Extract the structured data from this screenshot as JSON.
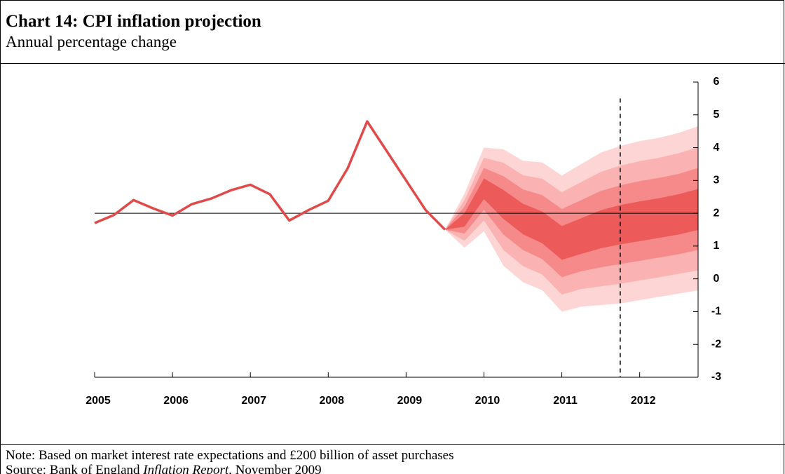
{
  "chart_data": {
    "type": "fan",
    "title": "Chart 14: CPI inflation projection",
    "subtitle": "Annual percentage change",
    "note": "Note: Based on market interest rate expectations and £200 billion of asset purchases",
    "source": {
      "prefix": "Source: Bank of England ",
      "italic": "Inflation Report",
      "suffix": ", November 2009"
    },
    "xlim": [
      2005,
      2012.75
    ],
    "xticks": [
      2005,
      2006,
      2007,
      2008,
      2009,
      2010,
      2011,
      2012
    ],
    "ylim": [
      -3,
      6
    ],
    "yticks": [
      -3,
      -2,
      -1,
      0,
      1,
      2,
      3,
      4,
      5,
      6
    ],
    "hline": 2,
    "vline": {
      "x": 2011.75,
      "top": 5.5
    },
    "series": [
      {
        "color": "#e04a4a",
        "x": [
          2005,
          2005.25,
          2005.5,
          2005.75,
          2006,
          2006.25,
          2006.5,
          2006.75,
          2007,
          2007.25,
          2007.5,
          2007.75,
          2008,
          2008.25,
          2008.5,
          2008.75,
          2009,
          2009.25,
          2009.5
        ],
        "values": [
          1.7,
          1.95,
          2.4,
          2.15,
          1.93,
          2.28,
          2.45,
          2.7,
          2.87,
          2.58,
          1.78,
          2.1,
          2.38,
          3.37,
          4.8,
          3.9,
          3.0,
          2.1,
          1.5
        ]
      }
    ],
    "fan_x": [
      2009.5,
      2009.75,
      2010,
      2010.25,
      2010.5,
      2010.75,
      2011,
      2011.25,
      2011.5,
      2011.75,
      2012,
      2012.25,
      2012.5,
      2012.75
    ],
    "fan": [
      {
        "color": "#fdd5d5",
        "upper": [
          1.5,
          2.6,
          4.0,
          3.95,
          3.6,
          3.55,
          3.15,
          3.5,
          3.85,
          4.05,
          4.2,
          4.3,
          4.45,
          4.65
        ],
        "lower": [
          1.5,
          0.95,
          1.45,
          0.4,
          -0.1,
          -0.35,
          -1.0,
          -0.85,
          -0.8,
          -0.75,
          -0.65,
          -0.55,
          -0.45,
          -0.35
        ]
      },
      {
        "color": "#fbb2b2",
        "upper": [
          1.5,
          2.4,
          3.69,
          3.54,
          3.16,
          3.05,
          2.64,
          2.95,
          3.26,
          3.45,
          3.59,
          3.69,
          3.83,
          4.01
        ],
        "lower": [
          1.5,
          1.16,
          1.78,
          0.88,
          0.39,
          0.13,
          -0.48,
          -0.31,
          -0.23,
          -0.15,
          -0.05,
          0.05,
          0.15,
          0.26
        ]
      },
      {
        "color": "#f68a8a",
        "upper": [
          1.5,
          2.2,
          3.38,
          3.13,
          2.73,
          2.55,
          2.13,
          2.4,
          2.68,
          2.85,
          2.98,
          3.08,
          3.2,
          3.38
        ],
        "lower": [
          1.5,
          1.38,
          2.1,
          1.35,
          0.88,
          0.6,
          0.05,
          0.23,
          0.35,
          0.45,
          0.55,
          0.65,
          0.75,
          0.88
        ]
      },
      {
        "color": "#ec5a5a",
        "upper": [
          1.5,
          2.0,
          3.06,
          2.71,
          2.29,
          2.05,
          1.61,
          1.85,
          2.09,
          2.25,
          2.36,
          2.46,
          2.58,
          2.74
        ],
        "lower": [
          1.5,
          1.59,
          2.43,
          1.83,
          1.36,
          1.08,
          0.58,
          0.76,
          0.93,
          1.05,
          1.15,
          1.25,
          1.35,
          1.49
        ]
      }
    ]
  }
}
